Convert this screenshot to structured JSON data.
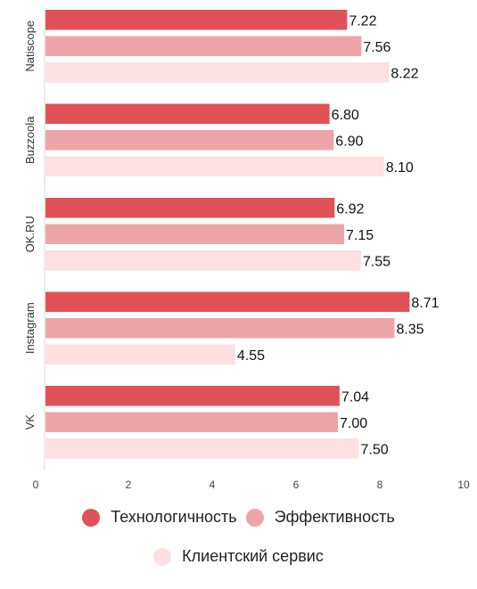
{
  "chart_data": {
    "type": "bar",
    "orientation": "horizontal",
    "categories": [
      "Natiscope",
      "Buzzoola",
      "OK.RU",
      "Instagram",
      "VK"
    ],
    "series": [
      {
        "name": "Технологичность",
        "color": "#e05258",
        "values": [
          7.22,
          6.8,
          6.92,
          8.71,
          7.04
        ]
      },
      {
        "name": "Эффективность",
        "color": "#eda5a9",
        "values": [
          7.56,
          6.9,
          7.15,
          8.35,
          7.0
        ]
      },
      {
        "name": "Клиентский сервис",
        "color": "#fde0e2",
        "values": [
          8.22,
          8.1,
          7.55,
          4.55,
          7.5
        ]
      }
    ],
    "value_labels": [
      [
        "7.22",
        "7.56",
        "8.22"
      ],
      [
        "6.80",
        "6.90",
        "8.10"
      ],
      [
        "6.92",
        "7.15",
        "7.55"
      ],
      [
        "8.71",
        "8.35",
        "4.55"
      ],
      [
        "7.04",
        "7.00",
        "7.50"
      ]
    ],
    "xlim": [
      0,
      10
    ],
    "x_ticks": [
      "0",
      "2",
      "4",
      "6",
      "8",
      "10"
    ],
    "grid": false,
    "legend_position": "bottom"
  }
}
